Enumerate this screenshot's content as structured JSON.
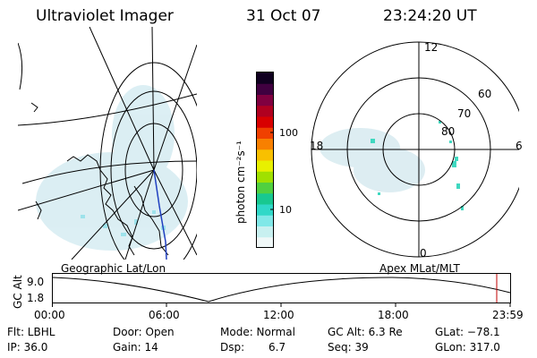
{
  "header": {
    "title": "Ultraviolet Imager",
    "date": "31 Oct 07",
    "time": "23:24:20 UT"
  },
  "colorbar": {
    "unit_label": "photon cm⁻²s⁻¹",
    "tick_100": "100",
    "tick_10": "10",
    "colors": [
      "#f0f8f8",
      "#c8f0f0",
      "#80e8e8",
      "#30d8c8",
      "#18c890",
      "#50d040",
      "#a0e000",
      "#e8f000",
      "#f8c000",
      "#f88000",
      "#f04000",
      "#d80000",
      "#b00020",
      "#800040",
      "#400040",
      "#100020"
    ]
  },
  "geo_panel": {
    "label": "Geographic Lat/Lon"
  },
  "polar_panel": {
    "label": "Apex MLat/MLT",
    "mlt_top": "12",
    "mlt_left": "18",
    "mlt_right": "6",
    "mlt_bottom": "0",
    "lat_60": "60",
    "lat_70": "70",
    "lat_80": "80"
  },
  "alt_plot": {
    "ylabel": "GC Alt",
    "ytick_top": "9.0",
    "ytick_bottom": "1.8",
    "xticks": [
      "00:00",
      "06:00",
      "12:00",
      "18:00",
      "23:59"
    ],
    "marker_color": "#c00000"
  },
  "footer": {
    "filter": "Flt: LBHL",
    "ip": "IP: 36.0",
    "door": "Door: Open",
    "gain": "Gain: 14",
    "mode": "Mode: Normal",
    "dsp_label": "Dsp:",
    "dsp_value": "6.7",
    "gc_alt": "GC Alt: 6.3 Re",
    "seq": "Seq: 39",
    "glat": "GLat: −78.1",
    "glon": "GLon: 317.0"
  }
}
